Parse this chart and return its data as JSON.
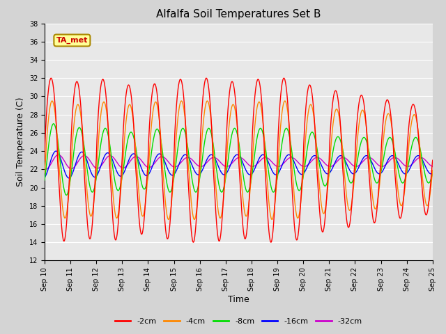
{
  "title": "Alfalfa Soil Temperatures Set B",
  "xlabel": "Time",
  "ylabel": "Soil Temperature (C)",
  "ylim": [
    12,
    38
  ],
  "yticks": [
    12,
    14,
    16,
    18,
    20,
    22,
    24,
    26,
    28,
    30,
    32,
    34,
    36,
    38
  ],
  "xtick_labels": [
    "Sep 10",
    "Sep 11",
    "Sep 12",
    "Sep 13",
    "Sep 14",
    "Sep 15",
    "Sep 16",
    "Sep 17",
    "Sep 18",
    "Sep 19",
    "Sep 20",
    "Sep 21",
    "Sep 22",
    "Sep 23",
    "Sep 24",
    "Sep 25"
  ],
  "legend_labels": [
    "-2cm",
    "-4cm",
    "-8cm",
    "-16cm",
    "-32cm"
  ],
  "legend_colors": [
    "#ff0000",
    "#ff8800",
    "#00dd00",
    "#0000ff",
    "#cc00cc"
  ],
  "annotation_text": "TA_met",
  "annotation_color": "#cc0000",
  "annotation_bg": "#ffff99",
  "annotation_border": "#aa8800",
  "title_fontsize": 11,
  "axis_fontsize": 9,
  "tick_fontsize": 7,
  "n_points": 1440,
  "days": 15,
  "series": {
    "depth_2": {
      "mean": 23.0,
      "amplitudes": [
        9.0,
        8.5,
        9.0,
        8.0,
        8.5,
        9.0,
        9.0,
        8.5,
        9.0,
        9.0,
        8.0,
        7.5,
        7.0,
        6.5,
        6.0
      ],
      "phase": 0.0,
      "skew": 0.3,
      "color": "#ff0000",
      "linewidth": 1.0
    },
    "depth_4": {
      "mean": 23.0,
      "amplitudes": [
        6.5,
        6.0,
        6.5,
        6.0,
        6.5,
        6.5,
        6.5,
        6.0,
        6.5,
        6.5,
        6.0,
        5.5,
        5.5,
        5.0,
        5.0
      ],
      "phase": 0.25,
      "skew": 0.2,
      "color": "#ff8800",
      "linewidth": 1.0
    },
    "depth_8": {
      "mean": 23.0,
      "amplitudes": [
        4.0,
        3.5,
        3.5,
        3.0,
        3.5,
        3.5,
        3.5,
        3.5,
        3.5,
        3.5,
        3.0,
        2.5,
        2.5,
        2.5,
        2.5
      ],
      "phase": 0.6,
      "skew": 0.1,
      "color": "#00dd00",
      "linewidth": 1.0
    },
    "depth_16": {
      "mean": 22.5,
      "amplitudes": [
        1.5,
        1.4,
        1.3,
        1.2,
        1.2,
        1.1,
        1.1,
        1.1,
        1.1,
        1.1,
        1.0,
        1.0,
        1.0,
        1.0,
        1.0
      ],
      "phase": 1.2,
      "skew": 0.05,
      "color": "#0000ff",
      "linewidth": 1.0
    },
    "depth_32": {
      "mean": 22.8,
      "amplitudes": [
        0.8,
        0.7,
        0.7,
        0.6,
        0.6,
        0.5,
        0.5,
        0.5,
        0.5,
        0.5,
        0.5,
        0.5,
        0.5,
        0.5,
        0.5
      ],
      "phase": 1.8,
      "skew": 0.02,
      "color": "#cc00cc",
      "linewidth": 1.0
    }
  }
}
